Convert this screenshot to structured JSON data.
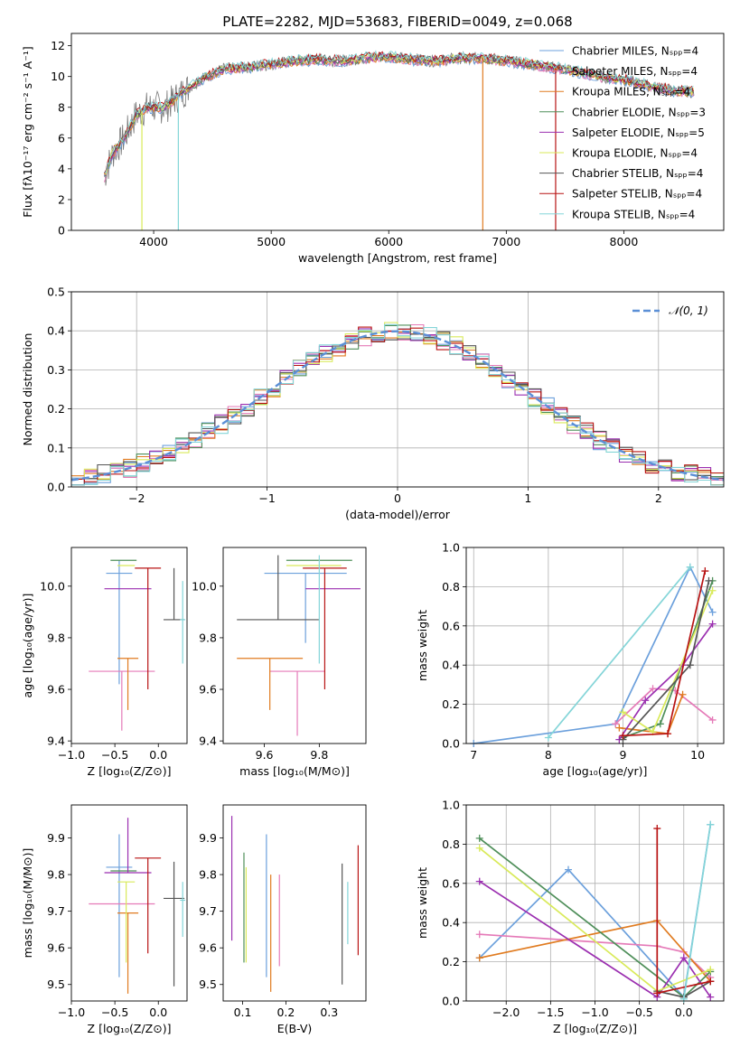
{
  "series_colors": [
    "#6ca0dc",
    "#e57ab8",
    "#e07b20",
    "#4f8f5a",
    "#9b2fb0",
    "#d9ea5a",
    "#555555",
    "#b81313",
    "#84d5d8"
  ],
  "chart_data": [
    {
      "id": "spectrum",
      "type": "line",
      "title": "PLATE=2282, MJD=53683, FIBERID=0049, z=0.068",
      "xlabel": "wavelength [Angstrom, rest frame]",
      "ylabel": "Flux [fλ10⁻¹⁷ erg cm⁻² s⁻¹ A⁻¹]",
      "xlim": [
        3300,
        8850
      ],
      "ylim": [
        0,
        12.8
      ],
      "xticks": [
        4000,
        5000,
        6000,
        7000,
        8000
      ],
      "yticks": [
        0,
        2,
        4,
        6,
        8,
        10,
        12
      ],
      "data_line": {
        "x": [
          3580,
          3650,
          3750,
          3850,
          3950,
          4100,
          4250,
          4400,
          4600,
          4800,
          5000,
          5200,
          5400,
          5600,
          5800,
          6000,
          6200,
          6400,
          6600,
          6800,
          7000,
          7200,
          7400,
          7600,
          7800,
          8000,
          8200,
          8400,
          8600
        ],
        "y": [
          3.5,
          5.0,
          6.0,
          7.5,
          8.0,
          8.0,
          9.0,
          9.8,
          10.5,
          10.6,
          10.8,
          11.0,
          11.1,
          11.0,
          11.2,
          11.3,
          11.1,
          11.0,
          11.2,
          11.2,
          11.0,
          10.8,
          10.6,
          10.3,
          10.0,
          9.8,
          9.4,
          9.1,
          9.0
        ]
      },
      "legend": {
        "position": "top-right",
        "entries": [
          "Chabrier MILES, Nₛₚₚ=4",
          "Salpeter MILES, Nₛₚₚ=4",
          "Kroupa MILES, Nₛₚₚ=4",
          "Chabrier ELODIE, Nₛₚₚ=3",
          "Salpeter ELODIE, Nₛₚₚ=5",
          "Kroupa ELODIE, Nₛₚₚ=4",
          "Chabrier STELIB, Nₛₚₚ=4",
          "Salpeter STELIB, Nₛₚₚ=4",
          "Kroupa STELIB, Nₛₚₚ=4"
        ]
      }
    },
    {
      "id": "residuals",
      "type": "histogram",
      "xlabel": "(data-model)/error",
      "ylabel": "Normed distribution",
      "xlim": [
        -2.5,
        2.5
      ],
      "ylim": [
        0,
        0.5
      ],
      "xticks": [
        -2,
        -1,
        0,
        1,
        2
      ],
      "yticks": [
        0.0,
        0.1,
        0.2,
        0.3,
        0.4,
        0.5
      ],
      "grid": true,
      "legend": {
        "position": "top-right",
        "entries": [
          "𝒩(0, 1)"
        ]
      }
    },
    {
      "id": "age-vs-Z",
      "type": "errorbar",
      "xlabel": "Z [log₁₀(Z/Z⊙)]",
      "ylabel": "age  [log₁₀(age/yr)]",
      "xlim": [
        -1.0,
        0.33
      ],
      "ylim": [
        9.39,
        10.15
      ],
      "xticks": [
        -1.0,
        -0.5,
        0.0
      ],
      "yticks": [
        9.4,
        9.6,
        9.8,
        10.0
      ],
      "points": [
        {
          "x": -0.45,
          "xerr": 0.15,
          "y": 10.05,
          "yerr": [
            0.43,
            0.05
          ]
        },
        {
          "x": -0.42,
          "xerr": 0.38,
          "y": 9.67,
          "yerr": [
            0.23,
            0.0
          ]
        },
        {
          "x": -0.35,
          "xerr": 0.12,
          "y": 9.72,
          "yerr": [
            0.2,
            0.0
          ]
        },
        {
          "x": -0.4,
          "xerr": 0.15,
          "y": 10.1,
          "yerr": [
            0.0,
            0.0
          ]
        },
        {
          "x": -0.35,
          "xerr": 0.27,
          "y": 9.99,
          "yerr": [
            0.0,
            0.0
          ]
        },
        {
          "x": -0.37,
          "xerr": 0.1,
          "y": 10.08,
          "yerr": [
            0.0,
            0.0
          ]
        },
        {
          "x": 0.18,
          "xerr": 0.12,
          "y": 9.87,
          "yerr": [
            0.0,
            0.2
          ]
        },
        {
          "x": -0.12,
          "xerr": 0.15,
          "y": 10.07,
          "yerr": [
            0.47,
            0.0
          ]
        },
        {
          "x": 0.28,
          "xerr": 0.03,
          "y": 9.87,
          "yerr": [
            0.17,
            0.15
          ]
        }
      ]
    },
    {
      "id": "age-vs-mass",
      "type": "errorbar",
      "xlabel": "mass [log₁₀(M/M⊙)]",
      "ylabel": "",
      "xlim": [
        9.45,
        9.97
      ],
      "ylim": [
        9.39,
        10.15
      ],
      "xticks": [
        9.6,
        9.8
      ],
      "yticks": [
        9.4,
        9.6,
        9.8,
        10.0
      ],
      "points": [
        {
          "x": 9.75,
          "xerr": 0.15,
          "y": 10.05,
          "yerr": [
            0.27,
            0.0
          ]
        },
        {
          "x": 9.72,
          "xerr": 0.1,
          "y": 9.67,
          "yerr": [
            0.25,
            0.0
          ]
        },
        {
          "x": 9.62,
          "xerr": 0.12,
          "y": 9.72,
          "yerr": [
            0.2,
            0.0
          ]
        },
        {
          "x": 9.8,
          "xerr": 0.12,
          "y": 10.1,
          "yerr": [
            0.0,
            0.0
          ]
        },
        {
          "x": 9.85,
          "xerr": 0.1,
          "y": 9.99,
          "yerr": [
            0.0,
            0.0
          ]
        },
        {
          "x": 9.78,
          "xerr": 0.1,
          "y": 10.08,
          "yerr": [
            0.0,
            0.0
          ]
        },
        {
          "x": 9.65,
          "xerr": 0.15,
          "y": 9.87,
          "yerr": [
            0.0,
            0.25
          ]
        },
        {
          "x": 9.82,
          "xerr": 0.08,
          "y": 10.07,
          "yerr": [
            0.47,
            0.0
          ]
        },
        {
          "x": 9.8,
          "xerr": 0.0,
          "y": 9.87,
          "yerr": [
            0.17,
            0.25
          ]
        }
      ]
    },
    {
      "id": "massweight-vs-age",
      "type": "line",
      "xlabel": "age  [log₁₀(age/yr)]",
      "ylabel": "mass weight",
      "xlim": [
        6.9,
        10.35
      ],
      "ylim": [
        0.0,
        1.0
      ],
      "xticks": [
        7,
        8,
        9,
        10
      ],
      "yticks": [
        0.0,
        0.2,
        0.4,
        0.6,
        0.8,
        1.0
      ],
      "grid": true,
      "series": [
        {
          "x": [
            7.0,
            8.9,
            9.9,
            10.2
          ],
          "y": [
            0.0,
            0.1,
            0.9,
            0.67
          ]
        },
        {
          "x": [
            8.9,
            9.4,
            9.7,
            10.2
          ],
          "y": [
            0.1,
            0.28,
            0.27,
            0.12
          ]
        },
        {
          "x": [
            8.95,
            9.6,
            9.8
          ],
          "y": [
            0.08,
            0.05,
            0.25
          ]
        },
        {
          "x": [
            9.0,
            9.5,
            10.2
          ],
          "y": [
            0.03,
            0.1,
            0.83
          ]
        },
        {
          "x": [
            8.95,
            9.3,
            9.8,
            10.2
          ],
          "y": [
            0.02,
            0.22,
            0.4,
            0.61
          ]
        },
        {
          "x": [
            9.0,
            9.4,
            10.2
          ],
          "y": [
            0.16,
            0.06,
            0.78
          ]
        },
        {
          "x": [
            9.0,
            9.9,
            10.15
          ],
          "y": [
            0.02,
            0.4,
            0.83
          ]
        },
        {
          "x": [
            9.0,
            9.6,
            10.1
          ],
          "y": [
            0.04,
            0.05,
            0.88
          ]
        },
        {
          "x": [
            8.0,
            9.9
          ],
          "y": [
            0.03,
            0.9
          ]
        }
      ]
    },
    {
      "id": "mass-vs-Z",
      "type": "errorbar",
      "xlabel": "Z [log₁₀(Z/Z⊙)]",
      "ylabel": "mass [log₁₀(M/M⊙)]",
      "xlim": [
        -1.0,
        0.33
      ],
      "ylim": [
        9.455,
        9.99
      ],
      "xticks": [
        -1.0,
        -0.5,
        0.0
      ],
      "yticks": [
        9.5,
        9.6,
        9.7,
        9.8,
        9.9
      ],
      "points": [
        {
          "x": -0.45,
          "xerr": 0.15,
          "y": 9.82,
          "yerr": [
            0.3,
            0.09
          ]
        },
        {
          "x": -0.42,
          "xerr": 0.38,
          "y": 9.72,
          "yerr": [
            0.0,
            0.0
          ]
        },
        {
          "x": -0.35,
          "xerr": 0.12,
          "y": 9.695,
          "yerr": [
            0.22,
            0.0
          ]
        },
        {
          "x": -0.4,
          "xerr": 0.15,
          "y": 9.81,
          "yerr": [
            0.0,
            0.0
          ]
        },
        {
          "x": -0.35,
          "xerr": 0.27,
          "y": 9.805,
          "yerr": [
            0.0,
            0.15
          ]
        },
        {
          "x": -0.37,
          "xerr": 0.1,
          "y": 9.78,
          "yerr": [
            0.22,
            0.0
          ]
        },
        {
          "x": 0.18,
          "xerr": 0.12,
          "y": 9.735,
          "yerr": [
            0.24,
            0.1
          ]
        },
        {
          "x": -0.12,
          "xerr": 0.15,
          "y": 9.845,
          "yerr": [
            0.26,
            0.0
          ]
        },
        {
          "x": 0.28,
          "xerr": 0.03,
          "y": 9.73,
          "yerr": [
            0.1,
            0.05
          ]
        }
      ]
    },
    {
      "id": "mass-vs-EBV",
      "type": "errorbar",
      "xlabel": "E(B-V)",
      "ylabel": "",
      "xlim": [
        0.055,
        0.385
      ],
      "ylim": [
        9.455,
        9.99
      ],
      "xticks": [
        0.1,
        0.2,
        0.3
      ],
      "yticks": [
        9.5,
        9.6,
        9.7,
        9.8,
        9.9
      ],
      "points": [
        {
          "x": 0.155,
          "xerr": 0.0,
          "y": 9.71,
          "yerr": [
            0.19,
            0.2
          ]
        },
        {
          "x": 0.185,
          "xerr": 0.0,
          "y": 9.7,
          "yerr": [
            0.15,
            0.1
          ]
        },
        {
          "x": 0.165,
          "xerr": 0.0,
          "y": 9.7,
          "yerr": [
            0.22,
            0.1
          ]
        },
        {
          "x": 0.103,
          "xerr": 0.0,
          "y": 9.71,
          "yerr": [
            0.15,
            0.15
          ]
        },
        {
          "x": 0.075,
          "xerr": 0.0,
          "y": 9.79,
          "yerr": [
            0.17,
            0.17
          ]
        },
        {
          "x": 0.108,
          "xerr": 0.0,
          "y": 9.7,
          "yerr": [
            0.14,
            0.12
          ]
        },
        {
          "x": 0.33,
          "xerr": 0.0,
          "y": 9.67,
          "yerr": [
            0.17,
            0.16
          ]
        },
        {
          "x": 0.367,
          "xerr": 0.0,
          "y": 9.73,
          "yerr": [
            0.15,
            0.15
          ]
        },
        {
          "x": 0.343,
          "xerr": 0.0,
          "y": 9.7,
          "yerr": [
            0.09,
            0.08
          ]
        }
      ]
    },
    {
      "id": "massweight-vs-Z",
      "type": "line",
      "xlabel": "Z [log₁₀(Z/Z⊙)]",
      "ylabel": "mass weight",
      "xlim": [
        -2.45,
        0.45
      ],
      "ylim": [
        0.0,
        1.0
      ],
      "xticks": [
        -2.0,
        -1.5,
        -1.0,
        -0.5,
        0.0
      ],
      "yticks": [
        0.0,
        0.2,
        0.4,
        0.6,
        0.8,
        1.0
      ],
      "grid": true,
      "series": [
        {
          "x": [
            -2.3,
            -1.3,
            0.0,
            0.3
          ],
          "y": [
            0.22,
            0.67,
            0.02,
            0.9
          ]
        },
        {
          "x": [
            -2.3,
            -0.3,
            0.0,
            0.3
          ],
          "y": [
            0.34,
            0.28,
            0.25,
            0.12
          ]
        },
        {
          "x": [
            -2.3,
            -0.3,
            0.3
          ],
          "y": [
            0.22,
            0.41,
            0.1
          ]
        },
        {
          "x": [
            -2.3,
            0.0,
            0.3
          ],
          "y": [
            0.83,
            0.02,
            0.15
          ]
        },
        {
          "x": [
            -2.3,
            -0.3,
            0.0,
            0.3
          ],
          "y": [
            0.61,
            0.02,
            0.22,
            0.02
          ]
        },
        {
          "x": [
            -2.3,
            -0.3,
            0.3
          ],
          "y": [
            0.78,
            0.05,
            0.16
          ]
        },
        {
          "x": [
            -0.3,
            0.0,
            0.3
          ],
          "y": [
            0.05,
            0.02,
            0.1
          ]
        },
        {
          "x": [
            -0.3,
            -0.3,
            0.3
          ],
          "y": [
            0.88,
            0.04,
            0.1
          ]
        },
        {
          "x": [
            0.0,
            0.3
          ],
          "y": [
            0.01,
            0.9
          ]
        }
      ]
    }
  ]
}
